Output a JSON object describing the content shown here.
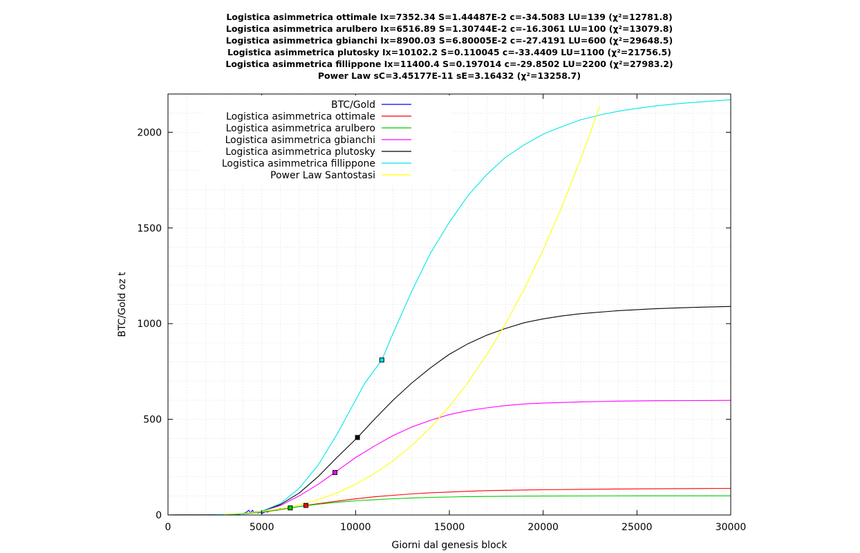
{
  "chart_data": {
    "type": "line",
    "titles": [
      "Logistica asimmetrica ottimale Ix=7352.34 S=1.44487E-2 c=-34.5083 LU=139 (χ²=12781.8)",
      "Logistica asimmetrica arulbero Ix=6516.89 S=1.30744E-2 c=-16.3061 LU=100 (χ²=13079.8)",
      "Logistica asimmetrica gbianchi Ix=8900.03 S=6.80005E-2 c=-27.4191 LU=600 (χ²=29648.5)",
      "Logistica asimmetrica plutosky Ix=10102.2 S=0.110045 c=-33.4409 LU=1100 (χ²=21756.5)",
      "Logistica asimmetrica fillippone Ix=11400.4 S=0.197014 c=-29.8502 LU=2200 (χ²=27983.2)",
      "Power Law sC=3.45177E-11 sE=3.16432 (χ²=13258.7)"
    ],
    "xlabel": "Giorni dal genesis block",
    "ylabel": "BTC/Gold oz t",
    "xlim": [
      0,
      30000
    ],
    "ylim": [
      0,
      2200
    ],
    "xticks": [
      0,
      5000,
      10000,
      15000,
      20000,
      25000,
      30000
    ],
    "yticks": [
      0,
      500,
      1000,
      1500,
      2000
    ],
    "grid": true,
    "legend_position": "top-left",
    "series": [
      {
        "name": "BTC/Gold",
        "color": "#0000ff",
        "x": [
          2000,
          2500,
          3000,
          3200,
          3500,
          3800,
          4000,
          4200,
          4300,
          4400,
          4500,
          4600,
          4700,
          4800,
          4900,
          5000,
          5100,
          5200,
          5300,
          5400,
          5500,
          5600,
          5700,
          5800,
          5900,
          6000
        ],
        "y": [
          0,
          0,
          0.5,
          1,
          2,
          4,
          8,
          15,
          25,
          10,
          25,
          12,
          18,
          10,
          14,
          8,
          12,
          18,
          15,
          20,
          25,
          22,
          28,
          24,
          30,
          35
        ]
      },
      {
        "name": "Logistica asimmetrica ottimale",
        "color": "#ff0000",
        "x": [
          0,
          2000,
          3000,
          4000,
          5000,
          5500,
          6000,
          6500,
          7000,
          7352,
          7500,
          8000,
          9000,
          10000,
          11000,
          12000,
          13000,
          14000,
          15000,
          16000,
          17000,
          18000,
          20000,
          22000,
          24000,
          26000,
          28000,
          30000
        ],
        "y": [
          0,
          0.5,
          2,
          6,
          15,
          21,
          28,
          36,
          44,
          50,
          52,
          59,
          72,
          84,
          95,
          103,
          110,
          116,
          120,
          124,
          127,
          129,
          132,
          134,
          136,
          137,
          138,
          139
        ]
      },
      {
        "name": "Logistica asimmetrica arulbero",
        "color": "#00cc00",
        "x": [
          0,
          2000,
          3000,
          4000,
          5000,
          5500,
          6000,
          6517,
          7000,
          8000,
          9000,
          10000,
          11000,
          12000,
          13000,
          14000,
          15000,
          16000,
          18000,
          20000,
          22000,
          25000,
          30000
        ],
        "y": [
          0,
          0.5,
          2,
          6,
          15,
          22,
          29,
          37,
          44,
          56,
          66,
          74,
          80,
          85,
          89,
          92,
          94,
          96,
          98,
          99,
          99.5,
          100,
          100
        ]
      },
      {
        "name": "Logistica asimmetrica gbianchi",
        "color": "#ff00ff",
        "x": [
          0,
          2000,
          3000,
          4000,
          5000,
          6000,
          7000,
          8000,
          8900,
          9500,
          10000,
          11000,
          12000,
          13000,
          14000,
          15000,
          16000,
          17000,
          18000,
          19000,
          20000,
          22000,
          24000,
          26000,
          28000,
          30000
        ],
        "y": [
          0,
          0.5,
          2,
          6,
          20,
          50,
          100,
          160,
          222,
          265,
          300,
          360,
          415,
          460,
          495,
          525,
          545,
          560,
          572,
          580,
          585,
          591,
          595,
          597,
          598,
          599
        ]
      },
      {
        "name": "Logistica asimmetrica plutosky",
        "color": "#000000",
        "x": [
          0,
          2000,
          3000,
          4000,
          5000,
          6000,
          7000,
          8000,
          9000,
          10102,
          11000,
          12000,
          13000,
          14000,
          15000,
          16000,
          17000,
          18000,
          19000,
          20000,
          21000,
          22000,
          24000,
          26000,
          28000,
          30000
        ],
        "y": [
          0,
          0.5,
          2,
          6,
          20,
          55,
          115,
          200,
          300,
          405,
          500,
          600,
          690,
          770,
          840,
          895,
          940,
          975,
          1005,
          1025,
          1040,
          1052,
          1068,
          1078,
          1085,
          1090
        ]
      },
      {
        "name": "Logistica asimmetrica fillippone",
        "color": "#00e5e5",
        "x": [
          0,
          2000,
          3000,
          4000,
          5000,
          6000,
          7000,
          8000,
          9000,
          10000,
          10500,
          11400,
          12000,
          13000,
          14000,
          15000,
          16000,
          17000,
          18000,
          19000,
          20000,
          21000,
          22000,
          23000,
          24000,
          25000,
          26000,
          27000,
          28000,
          29000,
          30000
        ],
        "y": [
          0,
          0.5,
          2,
          6,
          20,
          60,
          140,
          260,
          420,
          600,
          690,
          810,
          950,
          1170,
          1370,
          1530,
          1670,
          1780,
          1870,
          1935,
          1990,
          2030,
          2065,
          2090,
          2110,
          2125,
          2138,
          2148,
          2156,
          2163,
          2170
        ]
      },
      {
        "name": "Power Law Santostasi",
        "color": "#ffff00",
        "x": [
          3000,
          4000,
          5000,
          6000,
          7000,
          8000,
          9000,
          10000,
          11000,
          12000,
          13000,
          14000,
          15000,
          16000,
          17000,
          18000,
          19000,
          20000,
          21000,
          22000,
          23000
        ],
        "y": [
          3.6,
          9,
          18,
          32,
          52,
          80,
          115,
          160,
          216,
          283,
          363,
          458,
          568,
          694,
          838,
          1000,
          1182,
          1385,
          1611,
          1859,
          2131
        ]
      }
    ],
    "markers": [
      {
        "series": "Logistica asimmetrica ottimale",
        "x": 7352,
        "y": 50,
        "color": "#ff0000"
      },
      {
        "series": "Logistica asimmetrica arulbero",
        "x": 6517,
        "y": 37,
        "color": "#00cc00"
      },
      {
        "series": "Logistica asimmetrica gbianchi",
        "x": 8900,
        "y": 222,
        "color": "#ff00ff"
      },
      {
        "series": "Logistica asimmetrica plutosky",
        "x": 10102,
        "y": 405,
        "color": "#000000"
      },
      {
        "series": "Logistica asimmetrica fillippone",
        "x": 11400,
        "y": 810,
        "color": "#00e5e5"
      }
    ]
  }
}
